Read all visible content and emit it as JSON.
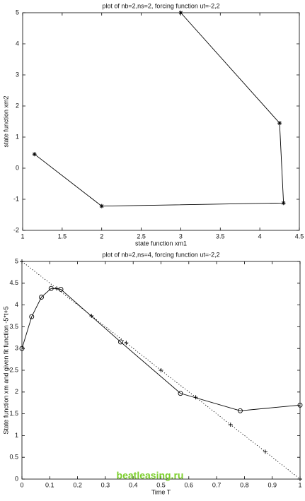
{
  "chart_data": [
    {
      "type": "line",
      "title": "plot of nb=2,ns=2, forcing function ut=-2,2",
      "xlabel": "state function xm1",
      "ylabel": "state function xm2",
      "xlim": [
        1,
        4.5
      ],
      "xticks": [
        1,
        1.5,
        2,
        2.5,
        3,
        3.5,
        4,
        4.5
      ],
      "ylim": [
        -2,
        5
      ],
      "yticks": [
        -2,
        -1,
        0,
        1,
        2,
        3,
        4,
        5
      ],
      "series": [
        {
          "x": [
            1.15,
            2,
            4.3,
            4.25,
            3
          ],
          "values": [
            0.45,
            -1.22,
            -1.12,
            1.45,
            5
          ],
          "color": "#000000",
          "marker": "*",
          "linestyle": "solid"
        }
      ]
    },
    {
      "type": "line",
      "title": "plot of nb=2,ns=4, forcing function ut=-2,2",
      "xlabel": "Time T",
      "ylabel": "State function xm and given fit function -5*t+5",
      "xlim": [
        0,
        1
      ],
      "xticks": [
        0,
        0.1,
        0.2,
        0.3,
        0.4,
        0.5,
        0.6,
        0.7,
        0.8,
        0.9,
        1
      ],
      "ylim": [
        0,
        5
      ],
      "yticks": [
        0,
        0.5,
        1,
        1.5,
        2,
        2.5,
        3,
        3.5,
        4,
        4.5,
        5
      ],
      "series": [
        {
          "x": [
            0,
            0.035,
            0.07,
            0.105,
            0.14,
            0.355,
            0.57,
            0.785,
            1
          ],
          "values": [
            3.0,
            3.73,
            4.18,
            4.38,
            4.36,
            3.15,
            1.97,
            1.57,
            1.7
          ],
          "color": "#000000",
          "marker": "o",
          "linestyle": "solid"
        },
        {
          "x": [
            0,
            0.125,
            0.25,
            0.375,
            0.5,
            0.625,
            0.75,
            0.875,
            1
          ],
          "values": [
            5,
            4.38,
            3.75,
            3.13,
            2.5,
            1.88,
            1.25,
            0.63,
            0
          ],
          "color": "#000000",
          "marker": "+",
          "linestyle": "dotted"
        }
      ]
    }
  ],
  "watermark": "beatleasing.ru"
}
